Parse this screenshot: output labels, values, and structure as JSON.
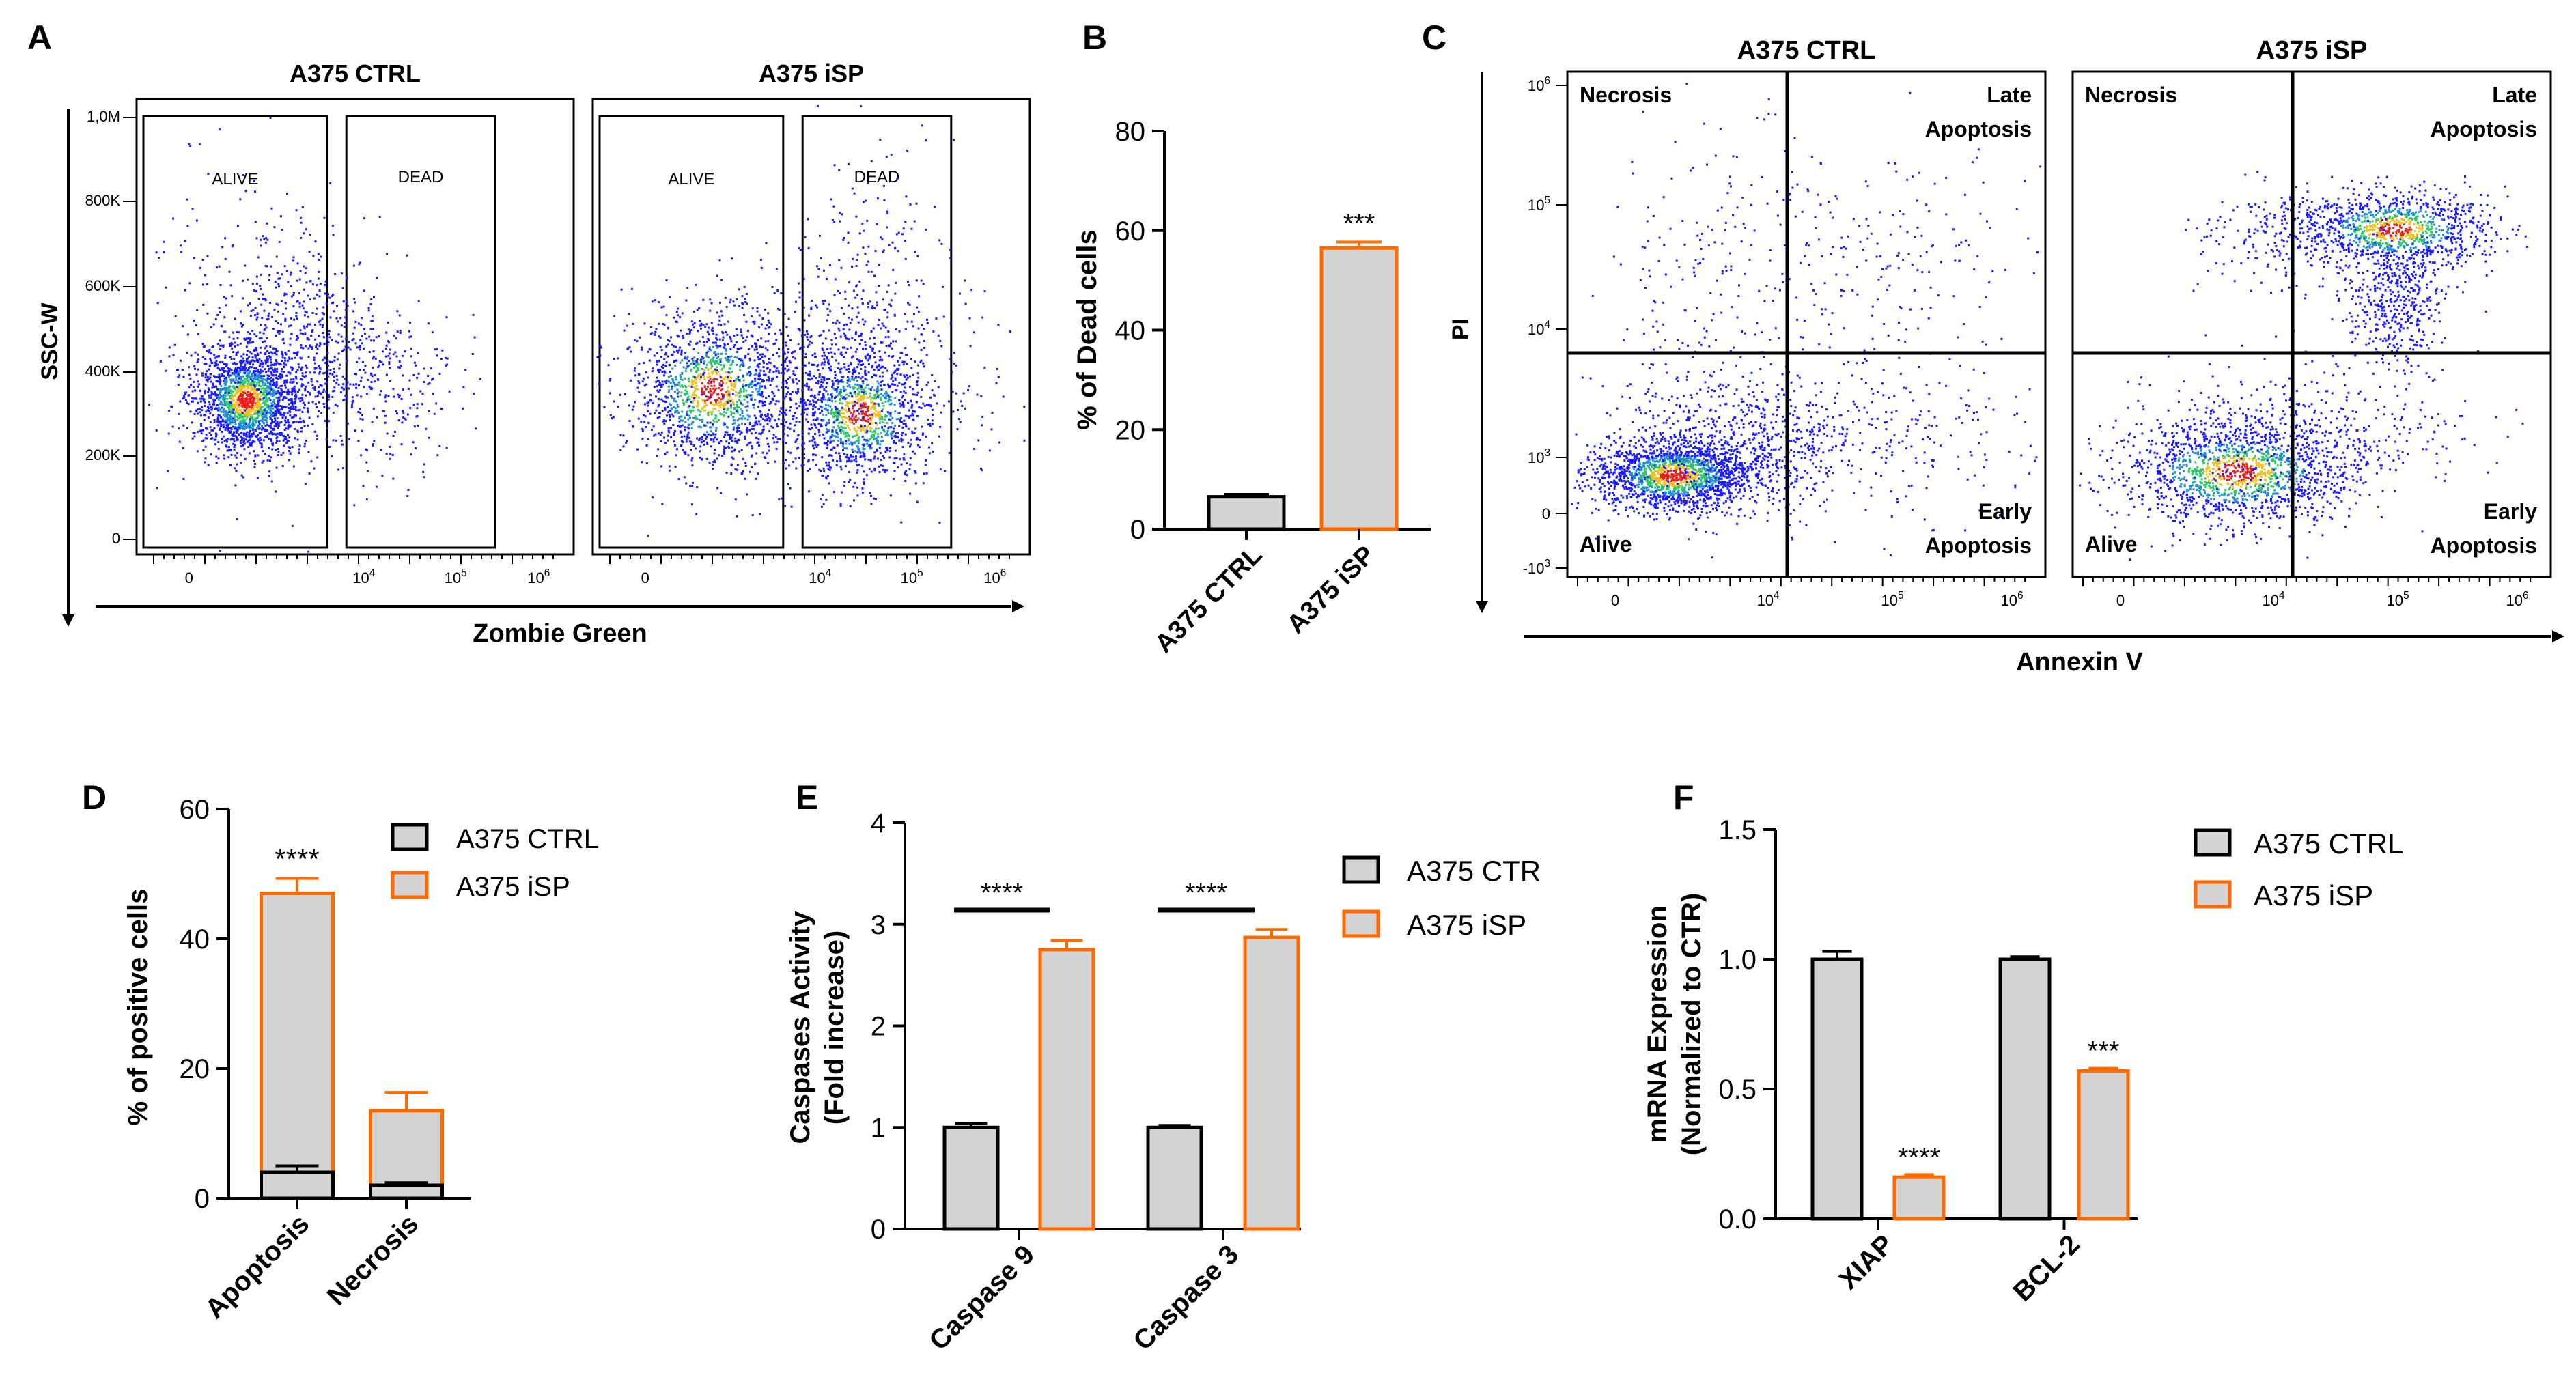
{
  "colors": {
    "ctrl_fill": "#d3d3d3",
    "ctrl_stroke": "#000000",
    "isp_fill": "#d3d3d3",
    "isp_stroke": "#ff6a00",
    "axis": "#000000"
  },
  "panels": {
    "A": {
      "letter": "A",
      "plot_titles": [
        "A375 CTRL",
        "A375 iSP"
      ],
      "gate_labels": [
        "ALIVE",
        "DEAD"
      ],
      "ylabel": "SSC-W",
      "xlabel": "Zombie Green",
      "yticks": [
        "1,0M",
        "800K",
        "600K",
        "400K",
        "200K",
        "0"
      ],
      "xticks": [
        {
          "base": "0",
          "exp": ""
        },
        {
          "base": "10",
          "exp": "4"
        },
        {
          "base": "10",
          "exp": "5"
        },
        {
          "base": "10",
          "exp": "6"
        }
      ]
    },
    "B": {
      "letter": "B",
      "significance": "***"
    },
    "C": {
      "letter": "C",
      "plot_titles": [
        "A375 CTRL",
        "A375 iSP"
      ],
      "quadrants": {
        "necrosis": "Necrosis",
        "late_1": "Late",
        "late_2": "Apoptosis",
        "alive": "Alive",
        "early_1": "Early",
        "early_2": "Apoptosis"
      },
      "ylabel": "PI",
      "xlabel": "Annexin V",
      "yticks": [
        {
          "base": "10",
          "exp": "6"
        },
        {
          "base": "10",
          "exp": "5"
        },
        {
          "base": "10",
          "exp": "4"
        },
        {
          "base": "10",
          "exp": "3"
        },
        {
          "base": "0",
          "exp": ""
        },
        {
          "base": "-10",
          "exp": "3"
        }
      ],
      "xticks": [
        {
          "base": "0",
          "exp": ""
        },
        {
          "base": "10",
          "exp": "4"
        },
        {
          "base": "10",
          "exp": "5"
        },
        {
          "base": "10",
          "exp": "6"
        }
      ]
    },
    "D": {
      "letter": "D",
      "significance": "****"
    },
    "E": {
      "letter": "E",
      "significance": [
        "****",
        "****"
      ]
    },
    "F": {
      "letter": "F",
      "significance": [
        "****",
        "***"
      ]
    }
  },
  "chart_data": [
    {
      "id": "B",
      "type": "bar",
      "categories": [
        "A375 CTRL",
        "A375 iSP"
      ],
      "values": [
        6.5,
        56.5
      ],
      "errors": [
        0.5,
        1.2
      ],
      "ylabel": "% of Dead cells",
      "ylim": [
        0,
        80
      ],
      "yticks": [
        0,
        20,
        40,
        60,
        80
      ]
    },
    {
      "id": "D",
      "type": "bar",
      "categories": [
        "Apoptosis",
        "Necrosis"
      ],
      "series": [
        {
          "name": "A375 CTRL",
          "values": [
            4.0,
            2.0
          ],
          "errors": [
            1.0,
            0.4
          ]
        },
        {
          "name": "A375 iSP",
          "values": [
            47.0,
            13.5
          ],
          "errors": [
            2.3,
            2.8
          ]
        }
      ],
      "ylabel": "% of positive cells",
      "ylim": [
        0,
        60
      ],
      "yticks": [
        0,
        20,
        40,
        60
      ]
    },
    {
      "id": "E",
      "type": "bar",
      "categories": [
        "Caspase 9",
        "Caspase 3"
      ],
      "series": [
        {
          "name": "A375 CTR",
          "values": [
            1.0,
            1.0
          ],
          "errors": [
            0.04,
            0.02
          ]
        },
        {
          "name": "A375 iSP",
          "values": [
            2.75,
            2.87
          ],
          "errors": [
            0.09,
            0.08
          ]
        }
      ],
      "ylabel_1": "Caspases Activity",
      "ylabel_2": "(Fold increase)",
      "ylim": [
        0,
        4
      ],
      "yticks": [
        0,
        1,
        2,
        3,
        4
      ]
    },
    {
      "id": "F",
      "type": "bar",
      "categories": [
        "XIAP",
        "BCL-2"
      ],
      "series": [
        {
          "name": "A375 CTRL",
          "values": [
            1.0,
            1.0
          ],
          "errors": [
            0.03,
            0.01
          ]
        },
        {
          "name": "A375 iSP",
          "values": [
            0.16,
            0.57
          ],
          "errors": [
            0.01,
            0.01
          ]
        }
      ],
      "ylabel_1": "mRNA Expression",
      "ylabel_2": "(Normalized to CTR)",
      "ylim": [
        0,
        1.5
      ],
      "yticks": [
        "0.0",
        "0.5",
        "1.0",
        "1.5"
      ]
    }
  ]
}
